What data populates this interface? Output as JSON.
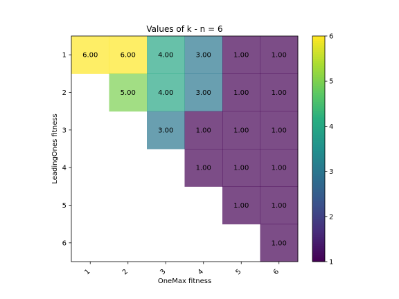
{
  "chart_data": {
    "type": "heatmap",
    "title": "Values of k - n = 6",
    "xlabel": "OneMax fitness",
    "ylabel": "LeadingOnes fitness",
    "x_categories": [
      "1",
      "2",
      "3",
      "4",
      "5",
      "6"
    ],
    "y_categories": [
      "1",
      "2",
      "3",
      "4",
      "5",
      "6"
    ],
    "colormap": "viridis",
    "colorbar": {
      "min": 1,
      "max": 6,
      "ticks": [
        "1",
        "2",
        "3",
        "4",
        "5",
        "6"
      ]
    },
    "values": [
      [
        6,
        6,
        4,
        3,
        1,
        1
      ],
      [
        null,
        5,
        4,
        3,
        1,
        1
      ],
      [
        null,
        null,
        3,
        1,
        1,
        1
      ],
      [
        null,
        null,
        null,
        1,
        1,
        1
      ],
      [
        null,
        null,
        null,
        null,
        1,
        1
      ],
      [
        null,
        null,
        null,
        null,
        null,
        1
      ]
    ],
    "cell_labels": [
      [
        "6.00",
        "6.00",
        "4.00",
        "3.00",
        "1.00",
        "1.00"
      ],
      [
        null,
        "5.00",
        "4.00",
        "3.00",
        "1.00",
        "1.00"
      ],
      [
        null,
        null,
        "3.00",
        "1.00",
        "1.00",
        "1.00"
      ],
      [
        null,
        null,
        null,
        "1.00",
        "1.00",
        "1.00"
      ],
      [
        null,
        null,
        null,
        null,
        "1.00",
        "1.00"
      ],
      [
        null,
        null,
        null,
        null,
        null,
        "1.00"
      ]
    ],
    "missing_color": "#ffffff"
  }
}
